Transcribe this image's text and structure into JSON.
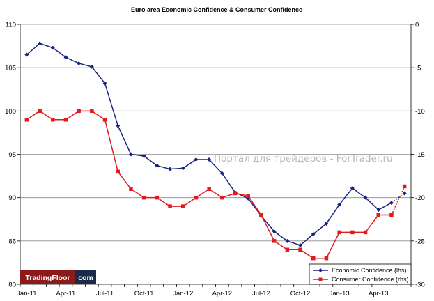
{
  "chart_data": {
    "type": "line",
    "title": "Euro area Economic Confidence & Consumer Confidence",
    "categories": [
      "Jan-11",
      "Feb-11",
      "Mar-11",
      "Apr-11",
      "May-11",
      "Jun-11",
      "Jul-11",
      "Aug-11",
      "Sep-11",
      "Oct-11",
      "Nov-11",
      "Dec-11",
      "Jan-12",
      "Feb-12",
      "Mar-12",
      "Apr-12",
      "May-12",
      "Jun-12",
      "Jul-12",
      "Aug-12",
      "Sep-12",
      "Oct-12",
      "Nov-12",
      "Dec-12",
      "Jan-13",
      "Feb-13",
      "Mar-13",
      "Apr-13",
      "May-13",
      "Jun-13"
    ],
    "x_tick_labels": [
      "Jan-11",
      "Apr-11",
      "Jul-11",
      "Oct-11",
      "Jan-12",
      "Apr-12",
      "Jul-12",
      "Oct-12",
      "Jan-13",
      "Apr-13"
    ],
    "y_left": {
      "min": 80,
      "max": 110,
      "ticks": [
        80,
        85,
        90,
        95,
        100,
        105,
        110
      ]
    },
    "y_right": {
      "min": -30,
      "max": 0,
      "ticks": [
        -30,
        -25,
        -20,
        -15,
        -10,
        -5,
        0
      ]
    },
    "grid": "horizontal",
    "legend_position": "bottom-right",
    "series": [
      {
        "name": "Economic Confidence (lhs)",
        "axis": "left",
        "color": "#1a237e",
        "marker": "diamond",
        "values": [
          106.5,
          107.8,
          107.3,
          106.2,
          105.5,
          105.1,
          103.2,
          98.3,
          95.0,
          94.8,
          93.7,
          93.3,
          93.4,
          94.4,
          94.4,
          92.8,
          90.6,
          89.9,
          87.9,
          86.1,
          85.0,
          84.5,
          85.8,
          87.0,
          89.2,
          91.1,
          90.0,
          88.6,
          89.4,
          90.5
        ],
        "projected_from_index": 28
      },
      {
        "name": "Consumer Confidence (rhs)",
        "axis": "right",
        "color": "#e31a1c",
        "marker": "square",
        "values": [
          -11,
          -10,
          -11,
          -11,
          -10,
          -10,
          -11,
          -17,
          -19,
          -20,
          -20,
          -21,
          -21,
          -20,
          -19,
          -20,
          -19.5,
          -19.8,
          -22,
          -25,
          -26,
          -26,
          -27,
          -27,
          -24,
          -24,
          -24,
          -22,
          -22,
          -18.7
        ],
        "projected_from_index": 28
      }
    ]
  },
  "branding": {
    "logo_left": "TradingFloor",
    "logo_right": "com",
    "logo_left_color": "#8b1a1a",
    "logo_right_color": "#1b2a4a",
    "watermark": "Портал для трейдеров - ForTrader.ru"
  }
}
